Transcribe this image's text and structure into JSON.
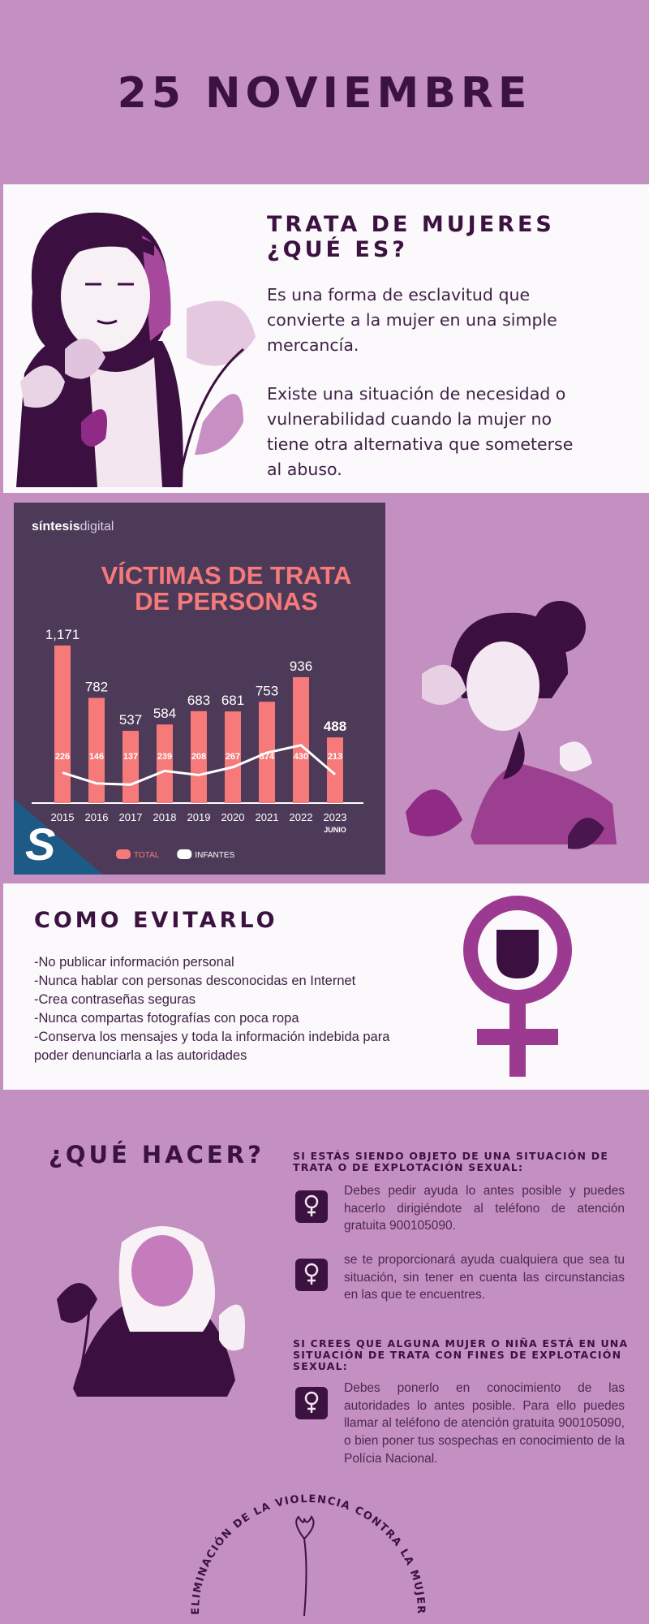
{
  "header": {
    "title": "25 NOVIEMBRE"
  },
  "trata": {
    "title_lines": [
      "TRATA DE MUJERES",
      "¿QUÉ ES?"
    ],
    "paragraphs": [
      "Es una forma de esclavitud que convierte a la mujer en una simple mercancía.",
      "Existe una situación de necesidad o vulnerabilidad cuando la mujer no tiene otra alternativa que someterse al abuso."
    ]
  },
  "chart_data": {
    "type": "bar",
    "brand": "síntesis",
    "brand_suffix": "digital",
    "title_lines": [
      "VÍCTIMAS DE TRATA",
      "DE PERSONAS"
    ],
    "categories": [
      "2015",
      "2016",
      "2017",
      "2018",
      "2019",
      "2020",
      "2021",
      "2022",
      "2023"
    ],
    "x_note": "JUNIO",
    "series": [
      {
        "name": "TOTAL",
        "color": "#f77a7a",
        "type": "bar",
        "values": [
          1171,
          782,
          537,
          584,
          683,
          681,
          753,
          936,
          488
        ],
        "value_labels": [
          "1,171",
          "782",
          "537",
          "584",
          "683",
          "681",
          "753",
          "936",
          "488"
        ]
      },
      {
        "name": "INFANTES",
        "color": "#ffffff",
        "type": "line",
        "values": [
          226,
          146,
          137,
          239,
          208,
          267,
          374,
          430,
          213
        ]
      }
    ]
  },
  "evitar": {
    "title": "COMO EVITARLO",
    "items": [
      "-No publicar información personal",
      "-Nunca hablar con personas desconocidas en Internet",
      "-Crea contraseñas seguras",
      "-Nunca compartas fotografías con poca ropa",
      "-Conserva los mensajes y toda la información indebida para poder denunciarla a las autoridades"
    ]
  },
  "hacer": {
    "title": "¿QUÉ HACER?",
    "groups": [
      {
        "heading": "SI ESTÁS SIENDO OBJETO DE UNA SITUACIÓN DE TRATA O DE EXPLOTACIÓN SEXUAL:",
        "items": [
          "Debes pedir ayuda lo antes posible y puedes hacerlo dirigiéndote al teléfono de atención gratuita 900105090.",
          "se te proporcionará ayuda cualquiera que sea tu situación, sin tener en cuenta las circunstancias en las que te encuentres."
        ]
      },
      {
        "heading": "SI CREES QUE ALGUNA MUJER O NIÑA ESTÁ EN UNA SITUACIÓN DE TRATA CON FINES DE EXPLOTACIÓN SEXUAL:",
        "items": [
          "Debes ponerlo en conocimiento de las autoridades lo antes posible. Para ello puedes llamar al teléfono de atención gratuita 900105090, o bien poner tus sospechas en conocimiento de la Polícia Nacional."
        ]
      }
    ]
  },
  "footer": {
    "arc_text": "ELIMINACIÓN DE LA VIOLENCIA CONTRA LA MUJER"
  }
}
